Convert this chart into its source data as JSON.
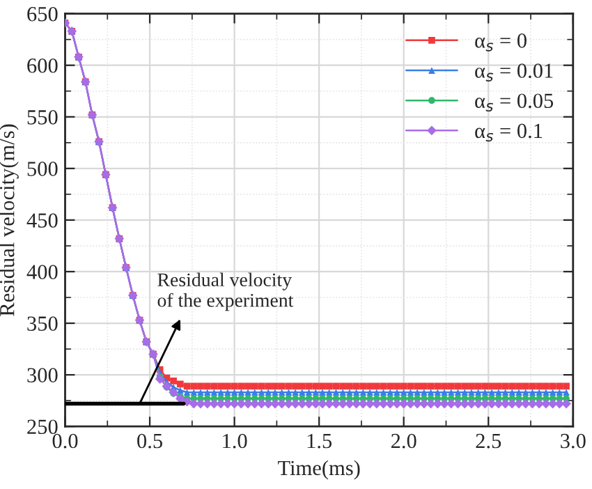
{
  "chart_data": {
    "type": "line",
    "xlabel": "Time(ms)",
    "ylabel": "Residual velocity(m/s)",
    "x": [
      0,
      0.04,
      0.08,
      0.12,
      0.16,
      0.2,
      0.24,
      0.28,
      0.32,
      0.36,
      0.4,
      0.44,
      0.48,
      0.52,
      0.56,
      0.6,
      0.64,
      0.68,
      0.72,
      0.76,
      0.8,
      0.84,
      0.88,
      0.92,
      0.96,
      1.0,
      1.04,
      1.08,
      1.12,
      1.16,
      1.2,
      1.24,
      1.28,
      1.32,
      1.36,
      1.4,
      1.44,
      1.48,
      1.52,
      1.56,
      1.6,
      1.64,
      1.68,
      1.72,
      1.76,
      1.8,
      1.84,
      1.88,
      1.92,
      1.96,
      2.0,
      2.04,
      2.08,
      2.12,
      2.16,
      2.2,
      2.24,
      2.28,
      2.32,
      2.36,
      2.4,
      2.44,
      2.48,
      2.52,
      2.56,
      2.6,
      2.64,
      2.68,
      2.72,
      2.76,
      2.8,
      2.84,
      2.88,
      2.92,
      2.96
    ],
    "series": [
      {
        "name": "α$_{s}$ = 0",
        "color": "#f0393c",
        "marker": "square",
        "values": [
          641,
          633,
          608,
          584,
          552,
          526,
          494,
          462,
          432,
          404,
          377,
          353,
          332,
          320,
          305,
          297,
          294,
          291,
          289,
          289,
          289,
          289,
          289,
          289,
          289,
          289,
          289,
          289,
          289,
          289,
          289,
          289,
          289,
          289,
          289,
          289,
          289,
          289,
          289,
          289,
          289,
          289,
          289,
          289,
          289,
          289,
          289,
          289,
          289,
          289,
          289,
          289,
          289,
          289,
          289,
          289,
          289,
          289,
          289,
          289,
          289,
          289,
          289,
          289,
          289,
          289,
          289,
          289,
          289,
          289,
          289,
          289,
          289,
          289,
          289
        ]
      },
      {
        "name": "α$_{s}$ = 0.01",
        "color": "#3a7de8",
        "marker": "triangle",
        "values": [
          641,
          633,
          608,
          584,
          552,
          526,
          494,
          462,
          432,
          404,
          377,
          353,
          332,
          320,
          302,
          293,
          288,
          285,
          283,
          283,
          283,
          283,
          283,
          283,
          283,
          283,
          283,
          283,
          283,
          283,
          283,
          283,
          283,
          283,
          283,
          283,
          283,
          283,
          283,
          283,
          283,
          283,
          283,
          283,
          283,
          283,
          283,
          283,
          283,
          283,
          283,
          283,
          283,
          283,
          283,
          283,
          283,
          283,
          283,
          283,
          283,
          283,
          283,
          283,
          283,
          283,
          283,
          283,
          283,
          283,
          283,
          283,
          283,
          283,
          283
        ]
      },
      {
        "name": "α$_{s}$ = 0.05",
        "color": "#2fb86a",
        "marker": "circle",
        "values": [
          null,
          null,
          null,
          null,
          null,
          null,
          null,
          null,
          null,
          null,
          null,
          null,
          null,
          320,
          298,
          288,
          282,
          279,
          277,
          277,
          277,
          277,
          277,
          277,
          277,
          277,
          277,
          277,
          277,
          277,
          277,
          277,
          277,
          277,
          277,
          277,
          277,
          277,
          277,
          277,
          277,
          277,
          277,
          277,
          277,
          277,
          277,
          277,
          277,
          277,
          277,
          277,
          277,
          277,
          277,
          277,
          277,
          277,
          277,
          277,
          277,
          277,
          277,
          277,
          277,
          277,
          277,
          277,
          277,
          277,
          277,
          277,
          277,
          277,
          277
        ]
      },
      {
        "name": "α$_{s}$ = 0.1",
        "color": "#a66de8",
        "marker": "diamond",
        "values": [
          641,
          633,
          608,
          584,
          552,
          526,
          494,
          462,
          432,
          404,
          377,
          353,
          332,
          320,
          296,
          289,
          283,
          277,
          274,
          272,
          272,
          272,
          272,
          272,
          272,
          272,
          272,
          272,
          272,
          272,
          272,
          272,
          272,
          272,
          272,
          272,
          272,
          272,
          272,
          272,
          272,
          272,
          272,
          272,
          272,
          272,
          272,
          272,
          272,
          272,
          272,
          272,
          272,
          272,
          272,
          272,
          272,
          272,
          272,
          272,
          272,
          272,
          272,
          272,
          272,
          272,
          272,
          272,
          272,
          272,
          272,
          272,
          272,
          272,
          272
        ]
      },
      {
        "color": "#000000",
        "marker": "none",
        "x": [
          0,
          0.7
        ],
        "values": [
          272,
          272
        ]
      }
    ],
    "annotations": [
      {
        "text": "Residual velocity\nof the experiment",
        "x": 0.44,
        "y": 272
      }
    ],
    "xlim": [
      0,
      3.0
    ],
    "ylim": [
      250,
      650
    ],
    "xticks": [
      {
        "value": 0,
        "label": "0.0"
      },
      0.5,
      {
        "value": 1,
        "label": "1.0"
      },
      1.5,
      {
        "value": 2,
        "label": "2.0"
      },
      2.5,
      {
        "value": 3,
        "label": "3.0"
      }
    ],
    "yticks": [
      250,
      300,
      350,
      400,
      450,
      500,
      550,
      600,
      650
    ],
    "grid": true,
    "legend": "top right"
  }
}
